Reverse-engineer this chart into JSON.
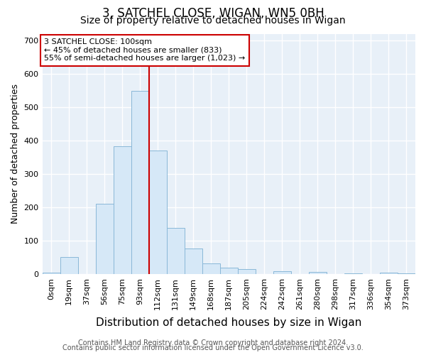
{
  "title": "3, SATCHEL CLOSE, WIGAN, WN5 0BH",
  "subtitle": "Size of property relative to detached houses in Wigan",
  "xlabel": "Distribution of detached houses by size in Wigan",
  "ylabel": "Number of detached properties",
  "bar_labels": [
    "0sqm",
    "19sqm",
    "37sqm",
    "56sqm",
    "75sqm",
    "93sqm",
    "112sqm",
    "131sqm",
    "149sqm",
    "168sqm",
    "187sqm",
    "205sqm",
    "224sqm",
    "242sqm",
    "261sqm",
    "280sqm",
    "298sqm",
    "317sqm",
    "336sqm",
    "354sqm",
    "373sqm"
  ],
  "bar_values": [
    5,
    52,
    0,
    212,
    383,
    548,
    370,
    140,
    77,
    32,
    20,
    15,
    0,
    10,
    0,
    8,
    0,
    3,
    0,
    5,
    4
  ],
  "bar_color": "#d6e8f7",
  "bar_edge_color": "#8ab8d8",
  "red_line_index": 6,
  "red_line_color": "#cc0000",
  "annotation_text": "3 SATCHEL CLOSE: 100sqm\n← 45% of detached houses are smaller (833)\n55% of semi-detached houses are larger (1,023) →",
  "annotation_box_facecolor": "#ffffff",
  "annotation_box_edgecolor": "#cc0000",
  "ylim": [
    0,
    720
  ],
  "yticks": [
    0,
    100,
    200,
    300,
    400,
    500,
    600,
    700
  ],
  "fig_bg_color": "#ffffff",
  "plot_bg_color": "#e8f0f8",
  "grid_color": "#ffffff",
  "title_fontsize": 12,
  "subtitle_fontsize": 10,
  "xlabel_fontsize": 11,
  "ylabel_fontsize": 9,
  "tick_fontsize": 8,
  "annotation_fontsize": 8,
  "footer_fontsize": 7,
  "footer_color": "#555555",
  "footer_line1": "Contains HM Land Registry data © Crown copyright and database right 2024.",
  "footer_line2": "Contains public sector information licensed under the Open Government Licence v3.0."
}
